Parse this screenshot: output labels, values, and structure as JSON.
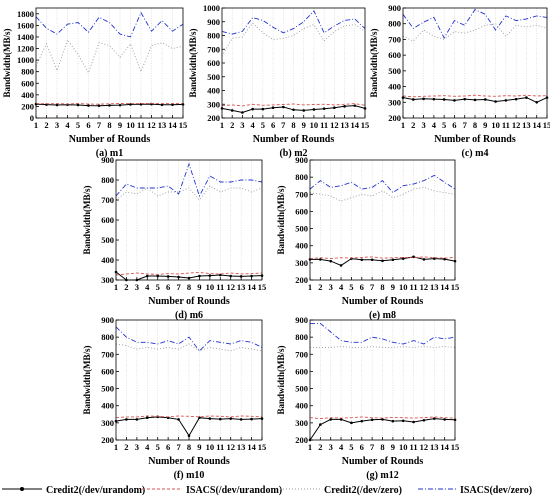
{
  "figure": {
    "legend": [
      {
        "label": "Credit2(/dev/urandom)"
      },
      {
        "label": "ISACS(/dev/urandom)"
      },
      {
        "label": "Credit2(/dev/zero)"
      },
      {
        "label": "ISACS(dev/zero)"
      }
    ]
  },
  "chart_data": [
    {
      "type": "line",
      "caption": "(a) m1",
      "xlabel": "Number of Rounds",
      "ylabel": "Bandwidth(MB/s)",
      "x": [
        1,
        2,
        3,
        4,
        5,
        6,
        7,
        8,
        9,
        10,
        11,
        12,
        13,
        14,
        15
      ],
      "xlim": [
        1,
        15
      ],
      "ylim": [
        0,
        1900
      ],
      "yticks": [
        0,
        200,
        400,
        600,
        800,
        1000,
        1200,
        1400,
        1600,
        1800
      ],
      "grid": true,
      "series": [
        {
          "name": "Credit2(/dev/urandom)",
          "color": "#000000",
          "style": "solid",
          "marker": "dot",
          "values": [
            240,
            232,
            225,
            230,
            225,
            215,
            212,
            218,
            222,
            235,
            237,
            240,
            228,
            230,
            235
          ]
        },
        {
          "name": "ISACS(/dev/urandom)",
          "color": "#d9534f",
          "style": "dashed",
          "values": [
            250,
            245,
            248,
            242,
            250,
            240,
            238,
            245,
            250,
            248,
            250,
            252,
            248,
            250,
            248
          ]
        },
        {
          "name": "Credit2(/dev/zero)",
          "color": "#9a9a9a",
          "style": "dotted",
          "values": [
            900,
            1280,
            820,
            1350,
            1100,
            780,
            1300,
            1250,
            1050,
            1280,
            800,
            1250,
            1300,
            1200,
            1240
          ]
        },
        {
          "name": "ISACS(dev/zero)",
          "color": "#2233cc",
          "style": "dashdot",
          "values": [
            1750,
            1550,
            1450,
            1620,
            1650,
            1480,
            1740,
            1650,
            1450,
            1400,
            1820,
            1500,
            1680,
            1500,
            1620
          ]
        }
      ]
    },
    {
      "type": "line",
      "caption": "(b) m2",
      "xlabel": "Number of Rounds",
      "ylabel": "Bandwidth(MB/s)",
      "x": [
        1,
        2,
        3,
        4,
        5,
        6,
        7,
        8,
        9,
        10,
        11,
        12,
        13,
        14,
        15
      ],
      "xlim": [
        1,
        15
      ],
      "ylim": [
        200,
        1000
      ],
      "yticks": [
        200,
        300,
        400,
        500,
        600,
        700,
        800,
        900,
        1000
      ],
      "grid": true,
      "series": [
        {
          "name": "Credit2(/dev/urandom)",
          "color": "#000000",
          "style": "solid",
          "marker": "dot",
          "values": [
            270,
            255,
            240,
            265,
            265,
            275,
            280,
            260,
            255,
            262,
            268,
            275,
            285,
            290,
            270
          ]
        },
        {
          "name": "ISACS(/dev/urandom)",
          "color": "#d9534f",
          "style": "dashed",
          "values": [
            290,
            295,
            288,
            300,
            292,
            295,
            298,
            302,
            295,
            298,
            300,
            295,
            300,
            305,
            292
          ]
        },
        {
          "name": "Credit2(/dev/zero)",
          "color": "#9a9a9a",
          "style": "dotted",
          "values": [
            650,
            780,
            790,
            890,
            820,
            770,
            780,
            800,
            850,
            880,
            760,
            830,
            870,
            880,
            830
          ]
        },
        {
          "name": "ISACS(dev/zero)",
          "color": "#2233cc",
          "style": "dashdot",
          "values": [
            830,
            810,
            830,
            930,
            910,
            860,
            820,
            850,
            900,
            980,
            820,
            870,
            910,
            920,
            850
          ]
        }
      ]
    },
    {
      "type": "line",
      "caption": "(c) m4",
      "xlabel": "Number of Rounds",
      "ylabel": "Bandwidth(MB/s)",
      "x": [
        1,
        2,
        3,
        4,
        5,
        6,
        7,
        8,
        9,
        10,
        11,
        12,
        13,
        14,
        15
      ],
      "xlim": [
        1,
        15
      ],
      "ylim": [
        200,
        900
      ],
      "yticks": [
        200,
        300,
        400,
        500,
        600,
        700,
        800,
        900
      ],
      "grid": true,
      "series": [
        {
          "name": "Credit2(/dev/urandom)",
          "color": "#000000",
          "style": "solid",
          "marker": "dot",
          "values": [
            330,
            318,
            322,
            320,
            318,
            312,
            320,
            315,
            318,
            305,
            312,
            320,
            330,
            300,
            330
          ]
        },
        {
          "name": "ISACS(/dev/urandom)",
          "color": "#d9534f",
          "style": "dashed",
          "values": [
            340,
            335,
            338,
            340,
            342,
            338,
            340,
            345,
            340,
            338,
            342,
            340,
            345,
            340,
            342
          ]
        },
        {
          "name": "Credit2(/dev/zero)",
          "color": "#9a9a9a",
          "style": "dotted",
          "values": [
            720,
            690,
            760,
            720,
            700,
            750,
            740,
            760,
            790,
            800,
            720,
            790,
            780,
            790,
            770
          ]
        },
        {
          "name": "ISACS(dev/zero)",
          "color": "#2233cc",
          "style": "dashdot",
          "values": [
            860,
            770,
            810,
            840,
            710,
            820,
            790,
            890,
            860,
            760,
            850,
            820,
            830,
            850,
            840
          ]
        }
      ]
    },
    {
      "type": "line",
      "caption": "(d) m6",
      "xlabel": "Number of Rounds",
      "ylabel": "Bandwidth(MB/s)",
      "x": [
        1,
        2,
        3,
        4,
        5,
        6,
        7,
        8,
        9,
        10,
        11,
        12,
        13,
        14,
        15
      ],
      "xlim": [
        1,
        15
      ],
      "ylim": [
        300,
        900
      ],
      "yticks": [
        300,
        400,
        500,
        600,
        700,
        800,
        900
      ],
      "grid": true,
      "series": [
        {
          "name": "Credit2(/dev/urandom)",
          "color": "#000000",
          "style": "solid",
          "marker": "dot",
          "values": [
            340,
            300,
            300,
            320,
            320,
            318,
            315,
            310,
            320,
            322,
            325,
            320,
            318,
            320,
            322
          ]
        },
        {
          "name": "ISACS(/dev/urandom)",
          "color": "#d9534f",
          "style": "dashed",
          "values": [
            325,
            330,
            335,
            330,
            328,
            332,
            330,
            335,
            338,
            332,
            330,
            335,
            330,
            332,
            335
          ]
        },
        {
          "name": "Credit2(/dev/zero)",
          "color": "#9a9a9a",
          "style": "dotted",
          "values": [
            700,
            740,
            730,
            760,
            720,
            740,
            740,
            760,
            700,
            770,
            740,
            760,
            760,
            740,
            760
          ]
        },
        {
          "name": "ISACS(dev/zero)",
          "color": "#2233cc",
          "style": "dashdot",
          "values": [
            720,
            780,
            760,
            760,
            760,
            770,
            730,
            880,
            720,
            820,
            790,
            790,
            800,
            800,
            790
          ]
        }
      ]
    },
    {
      "type": "line",
      "caption": "(e) m8",
      "xlabel": "Number of Rounds",
      "ylabel": "Bandwidth(MB/s)",
      "x": [
        1,
        2,
        3,
        4,
        5,
        6,
        7,
        8,
        9,
        10,
        11,
        12,
        13,
        14,
        15
      ],
      "xlim": [
        1,
        15
      ],
      "ylim": [
        200,
        900
      ],
      "yticks": [
        200,
        300,
        400,
        500,
        600,
        700,
        800,
        900
      ],
      "grid": true,
      "series": [
        {
          "name": "Credit2(/dev/urandom)",
          "color": "#000000",
          "style": "solid",
          "marker": "dot",
          "values": [
            320,
            320,
            310,
            285,
            325,
            318,
            318,
            312,
            318,
            325,
            335,
            320,
            325,
            322,
            310
          ]
        },
        {
          "name": "ISACS(/dev/urandom)",
          "color": "#d9534f",
          "style": "dashed",
          "values": [
            325,
            330,
            325,
            330,
            328,
            332,
            335,
            328,
            330,
            332,
            330,
            335,
            330,
            328,
            332
          ]
        },
        {
          "name": "Credit2(/dev/zero)",
          "color": "#9a9a9a",
          "style": "dotted",
          "values": [
            710,
            700,
            690,
            660,
            680,
            700,
            690,
            720,
            680,
            700,
            730,
            740,
            720,
            710,
            700
          ]
        },
        {
          "name": "ISACS(dev/zero)",
          "color": "#2233cc",
          "style": "dashdot",
          "values": [
            730,
            780,
            740,
            750,
            770,
            730,
            740,
            780,
            710,
            750,
            760,
            780,
            810,
            770,
            730
          ]
        }
      ]
    },
    {
      "type": "line",
      "caption": "(f) m10",
      "xlabel": "Number of Rounds",
      "ylabel": "Bandwidth(MB/s)",
      "x": [
        1,
        2,
        3,
        4,
        5,
        6,
        7,
        8,
        9,
        10,
        11,
        12,
        13,
        14,
        15
      ],
      "xlim": [
        1,
        15
      ],
      "ylim": [
        200,
        900
      ],
      "yticks": [
        200,
        300,
        400,
        500,
        600,
        700,
        800,
        900
      ],
      "grid": true,
      "series": [
        {
          "name": "Credit2(/dev/urandom)",
          "color": "#000000",
          "style": "solid",
          "marker": "dot",
          "values": [
            310,
            320,
            320,
            330,
            335,
            330,
            320,
            225,
            330,
            325,
            322,
            325,
            320,
            322,
            325
          ]
        },
        {
          "name": "ISACS(/dev/urandom)",
          "color": "#d9534f",
          "style": "dashed",
          "values": [
            330,
            335,
            335,
            340,
            338,
            335,
            340,
            338,
            335,
            340,
            338,
            335,
            340,
            338,
            335
          ]
        },
        {
          "name": "Credit2(/dev/zero)",
          "color": "#9a9a9a",
          "style": "dotted",
          "values": [
            760,
            750,
            730,
            740,
            730,
            740,
            730,
            760,
            720,
            740,
            730,
            720,
            740,
            730,
            720
          ]
        },
        {
          "name": "ISACS(dev/zero)",
          "color": "#2233cc",
          "style": "dashdot",
          "values": [
            860,
            800,
            770,
            770,
            760,
            780,
            760,
            800,
            720,
            780,
            770,
            760,
            780,
            770,
            740
          ]
        }
      ]
    },
    {
      "type": "line",
      "caption": "(g) m12",
      "xlabel": "Number of Rounds",
      "ylabel": "Bandwidth(MB/s)",
      "x": [
        1,
        2,
        3,
        4,
        5,
        6,
        7,
        8,
        9,
        10,
        11,
        12,
        13,
        14,
        15
      ],
      "xlim": [
        1,
        15
      ],
      "ylim": [
        200,
        900
      ],
      "yticks": [
        200,
        300,
        400,
        500,
        600,
        700,
        800,
        900
      ],
      "grid": true,
      "series": [
        {
          "name": "Credit2(/dev/urandom)",
          "color": "#000000",
          "style": "solid",
          "marker": "dot",
          "values": [
            200,
            290,
            320,
            320,
            300,
            310,
            318,
            320,
            310,
            312,
            305,
            315,
            325,
            320,
            318
          ]
        },
        {
          "name": "ISACS(/dev/urandom)",
          "color": "#d9534f",
          "style": "dashed",
          "values": [
            330,
            325,
            330,
            328,
            330,
            335,
            330,
            328,
            332,
            330,
            328,
            330,
            335,
            330,
            328
          ]
        },
        {
          "name": "Credit2(/dev/zero)",
          "color": "#9a9a9a",
          "style": "dotted",
          "values": [
            740,
            740,
            740,
            745,
            740,
            740,
            745,
            740,
            740,
            745,
            740,
            745,
            740,
            745,
            740
          ]
        },
        {
          "name": "ISACS(dev/zero)",
          "color": "#2233cc",
          "style": "dashdot",
          "values": [
            880,
            880,
            830,
            780,
            770,
            770,
            800,
            790,
            770,
            760,
            780,
            760,
            800,
            790,
            800
          ]
        }
      ]
    }
  ]
}
